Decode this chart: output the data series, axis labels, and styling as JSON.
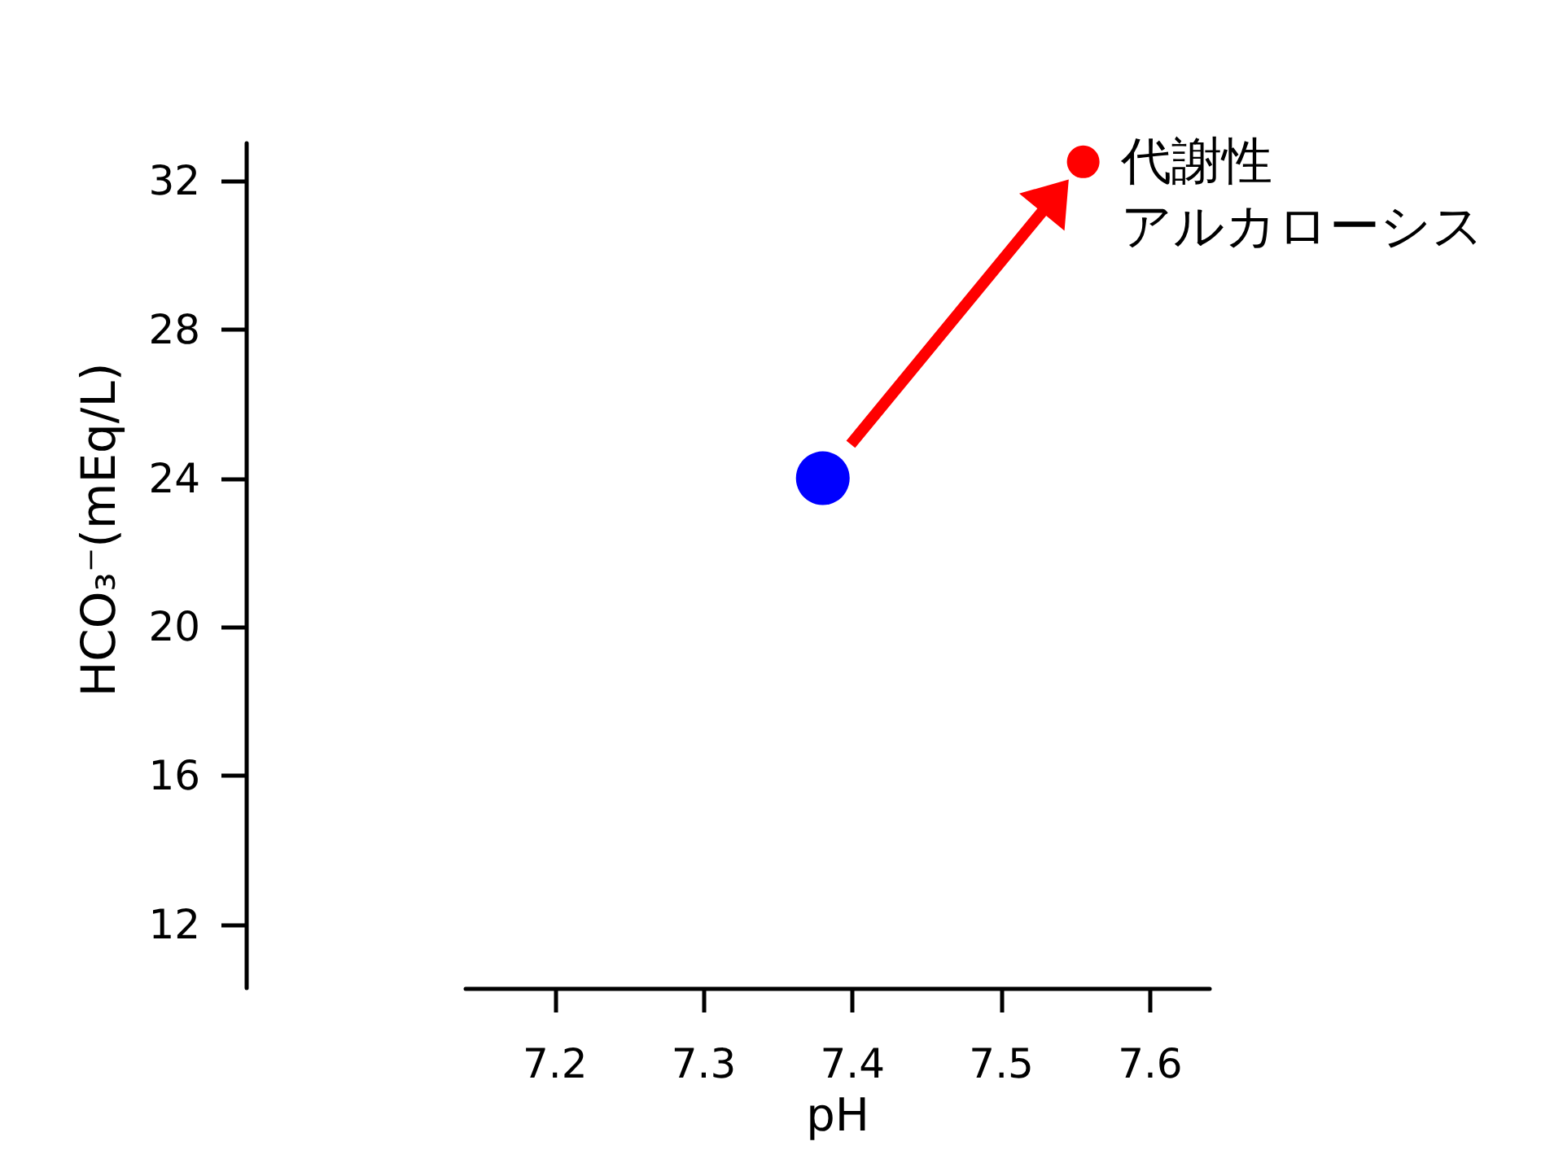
{
  "chart_data": {
    "type": "scatter",
    "xlabel": "pH",
    "ylabel": "HCO₃⁻(mEq/L)",
    "xlim": [
      7.14,
      7.64
    ],
    "ylim": [
      10.3,
      33
    ],
    "xticks": [
      7.2,
      7.3,
      7.4,
      7.5,
      7.6
    ],
    "yticks": [
      12,
      16,
      20,
      24,
      28,
      32
    ],
    "marker": "circle",
    "series": [
      {
        "color": "#0000ff",
        "x": [
          7.38
        ],
        "values": [
          24
        ]
      },
      {
        "color": "#ff0000",
        "x": [
          7.555
        ],
        "values": [
          32.5
        ]
      }
    ],
    "annotations": [
      {
        "text": "代謝性",
        "x": 7.555,
        "y": 32.5
      },
      {
        "text": "アルカローシス",
        "x": 7.555,
        "y": 32.5
      }
    ]
  }
}
